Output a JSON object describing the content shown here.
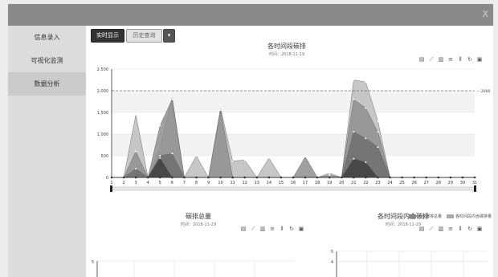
{
  "window": {
    "close_label": "X"
  },
  "sidebar": {
    "items": [
      {
        "label": "信息录入",
        "active": false
      },
      {
        "label": "可视化监测",
        "active": false
      },
      {
        "label": "数据分析",
        "active": true
      }
    ]
  },
  "toolbar": {
    "realtime_label": "实时显示",
    "history_label": "历史查询",
    "dropdown_label": "▾"
  },
  "toolbox_icons": [
    "data-view-icon",
    "line-icon",
    "bar-icon",
    "stack-icon",
    "tiled-icon",
    "restore-icon",
    "save-image-icon"
  ],
  "toolbox_glyphs": [
    "▤",
    "⟋",
    "▥",
    "≡",
    "⦀",
    "↻",
    "▣"
  ],
  "main_chart": {
    "title": "各时间段碳排",
    "subtitle": "时间：2018-11-29"
  },
  "bottom_left": {
    "title": "碳排总量",
    "subtitle": "时间：2018-11-29"
  },
  "bottom_right": {
    "title": "各时间段内含碳排",
    "subtitle": "时间：2018-11-29"
  },
  "legend": [
    {
      "label": "内含碳排总量",
      "color": "#888888"
    },
    {
      "label": "各时间段内含碳排量",
      "color": "#aaaaaa"
    }
  ],
  "chart_data": [
    {
      "type": "area",
      "title": "各时间段碳排",
      "x": [
        1,
        2,
        3,
        4,
        5,
        6,
        7,
        8,
        9,
        10,
        11,
        12,
        13,
        14,
        15,
        16,
        17,
        18,
        19,
        20,
        21,
        22,
        23,
        24,
        25,
        26,
        27,
        28,
        29,
        30,
        31
      ],
      "ylim": [
        0,
        2500
      ],
      "yticks": [
        0,
        500,
        1000,
        1500,
        2000,
        2500
      ],
      "ytick_labels": [
        "0",
        "500",
        "1,000",
        "1,500",
        "2,000",
        "2,500"
      ],
      "markline": {
        "value": 2000,
        "label": "2000"
      },
      "grid": true,
      "series": [
        {
          "color": "#bdbdbd",
          "values": [
            0,
            0,
            1450,
            0,
            700,
            1850,
            0,
            500,
            0,
            1600,
            380,
            400,
            0,
            450,
            0,
            0,
            0,
            0,
            100,
            0,
            2250,
            2200,
            1300,
            0,
            0,
            0,
            0,
            0,
            0,
            0,
            0
          ]
        },
        {
          "color": "#8f8f8f",
          "values": [
            0,
            0,
            600,
            0,
            1200,
            1800,
            0,
            0,
            0,
            1550,
            0,
            0,
            0,
            0,
            0,
            0,
            480,
            0,
            50,
            0,
            1800,
            1600,
            1050,
            0,
            0,
            0,
            0,
            0,
            0,
            0,
            0
          ]
        },
        {
          "color": "#6e6e6e",
          "values": [
            0,
            0,
            200,
            0,
            500,
            550,
            0,
            0,
            0,
            0,
            0,
            0,
            0,
            0,
            0,
            0,
            0,
            0,
            0,
            0,
            1050,
            900,
            700,
            0,
            0,
            0,
            0,
            0,
            0,
            0,
            0
          ]
        },
        {
          "color": "#404040",
          "values": [
            0,
            0,
            0,
            0,
            450,
            0,
            0,
            0,
            0,
            0,
            0,
            0,
            0,
            0,
            0,
            0,
            0,
            0,
            0,
            0,
            430,
            350,
            0,
            0,
            0,
            0,
            0,
            0,
            0,
            0,
            0
          ]
        }
      ]
    },
    {
      "type": "bar",
      "title": "各时间段内含碳排",
      "ylim": [
        0,
        5
      ],
      "yticks": [
        4,
        5
      ],
      "series": [
        {
          "name": "内含碳排总量"
        },
        {
          "name": "各时间段内含碳排量"
        }
      ]
    }
  ]
}
